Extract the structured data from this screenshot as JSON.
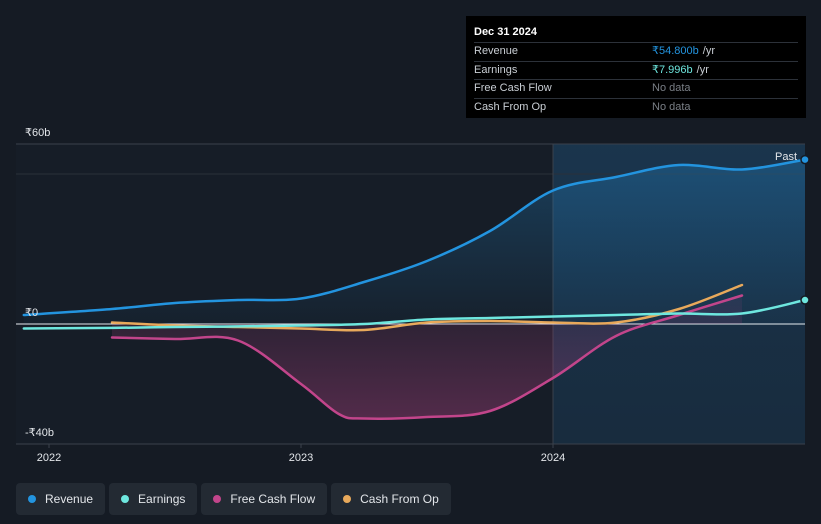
{
  "tooltip": {
    "date": "Dec 31 2024",
    "rows": [
      {
        "label": "Revenue",
        "value": "₹54.800b",
        "unit": "/yr",
        "color": "#2394df"
      },
      {
        "label": "Earnings",
        "value": "₹7.996b",
        "unit": "/yr",
        "color": "#6ee7df"
      },
      {
        "label": "Free Cash Flow",
        "value": "No data",
        "unit": "",
        "color": "#7a7f86"
      },
      {
        "label": "Cash From Op",
        "value": "No data",
        "unit": "",
        "color": "#7a7f86"
      }
    ]
  },
  "legend": [
    {
      "label": "Revenue",
      "color": "#2394df"
    },
    {
      "label": "Earnings",
      "color": "#6ee7df"
    },
    {
      "label": "Free Cash Flow",
      "color": "#c2458b"
    },
    {
      "label": "Cash From Op",
      "color": "#e8a95b"
    }
  ],
  "chart_data": {
    "type": "line",
    "title": "",
    "xlabel": "",
    "ylabel": "",
    "x_ticks": [
      "2022",
      "2023",
      "2024"
    ],
    "y_ticks": [
      "₹60b",
      "₹0",
      "-₹40b"
    ],
    "ylim": [
      -40,
      60
    ],
    "xlim": [
      2021.9,
      2025.0
    ],
    "past_label": "Past",
    "past_start": 2024.0,
    "series": [
      {
        "name": "Revenue",
        "color": "#2394df",
        "x": [
          2021.9,
          2022.25,
          2022.5,
          2022.75,
          2023.0,
          2023.25,
          2023.5,
          2023.75,
          2024.0,
          2024.25,
          2024.5,
          2024.75,
          2025.0
        ],
        "y": [
          3.0,
          5.0,
          7.0,
          8.0,
          8.5,
          14.0,
          21.0,
          31.0,
          44.5,
          49.0,
          53.0,
          51.5,
          54.8
        ]
      },
      {
        "name": "Earnings",
        "color": "#6ee7df",
        "x": [
          2021.9,
          2022.25,
          2022.5,
          2022.75,
          2023.0,
          2023.25,
          2023.5,
          2023.75,
          2024.0,
          2024.25,
          2024.5,
          2024.75,
          2025.0
        ],
        "y": [
          -1.5,
          -1.3,
          -1.0,
          -0.8,
          -0.5,
          0.0,
          1.5,
          2.0,
          2.5,
          3.0,
          3.5,
          3.5,
          8.0
        ]
      },
      {
        "name": "Free Cash Flow",
        "color": "#c2458b",
        "x": [
          2022.25,
          2022.5,
          2022.75,
          2023.0,
          2023.15,
          2023.25,
          2023.5,
          2023.75,
          2024.0,
          2024.25,
          2024.5,
          2024.75
        ],
        "y": [
          -4.5,
          -5.0,
          -5.5,
          -20.0,
          -30.0,
          -31.5,
          -31.0,
          -29.0,
          -18.0,
          -4.0,
          3.0,
          9.5
        ]
      },
      {
        "name": "Cash From Op",
        "color": "#e8a95b",
        "x": [
          2022.25,
          2022.5,
          2022.75,
          2023.0,
          2023.25,
          2023.5,
          2023.75,
          2024.0,
          2024.25,
          2024.5,
          2024.75
        ],
        "y": [
          0.5,
          -0.5,
          -1.0,
          -1.5,
          -2.0,
          0.5,
          1.0,
          0.5,
          0.5,
          5.0,
          13.0
        ]
      }
    ]
  }
}
